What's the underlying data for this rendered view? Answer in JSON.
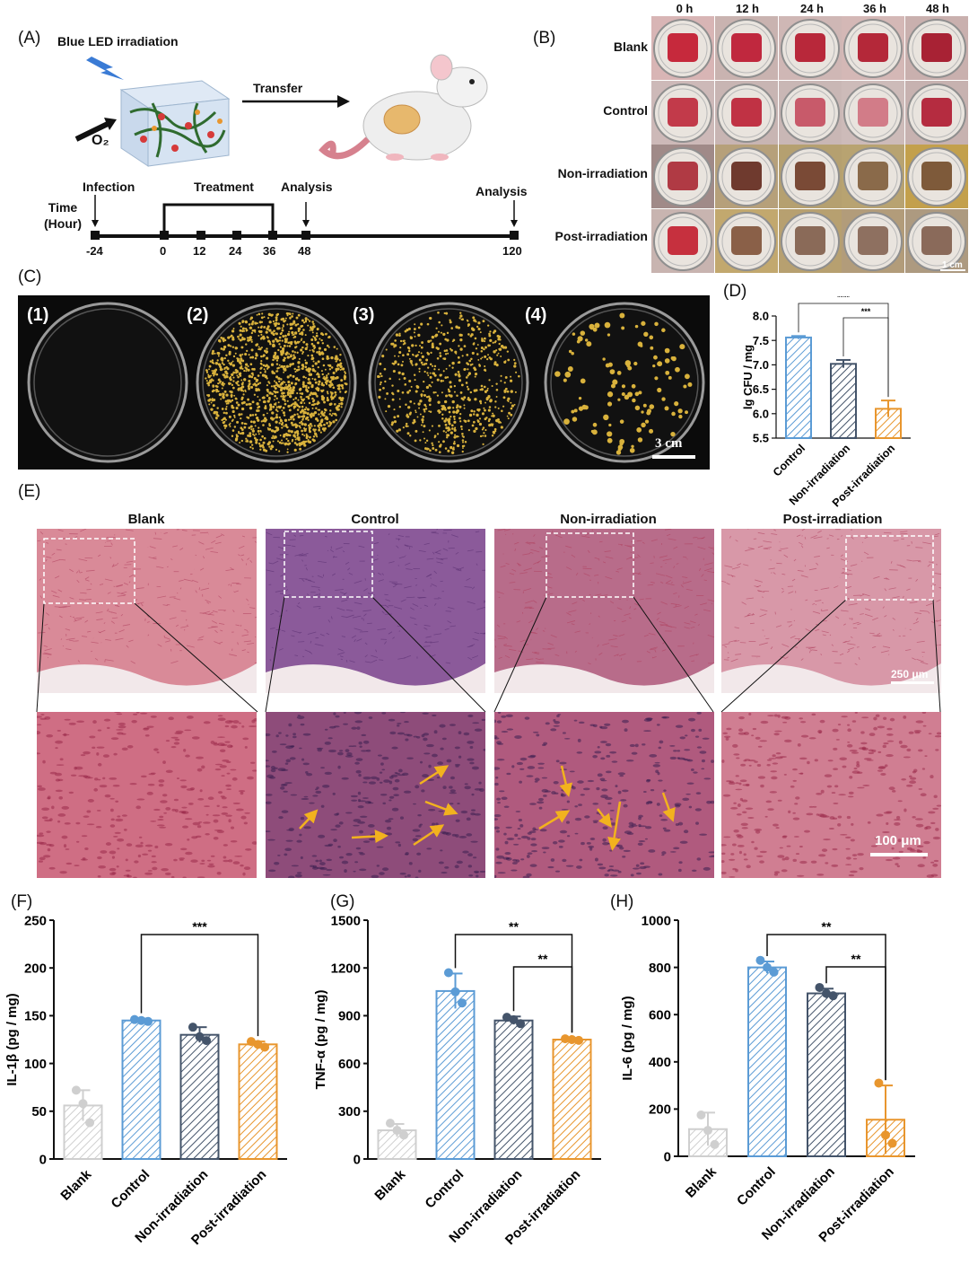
{
  "colors": {
    "blank": "#cfcfcf",
    "control": "#5b9bd5",
    "non_irradiation": "#44546a",
    "post_irradiation": "#e8962e",
    "plate_bg": "#0b0b0b",
    "colony": "#d9b23c",
    "he_pink": "#c94a6b",
    "he_purple": "#6b3a86",
    "arrow": "#f2b21e"
  },
  "panelA": {
    "label": "(A)",
    "led_text": "Blue LED irradiation",
    "o2_text": "O₂",
    "transfer_text": "Transfer",
    "timeline": {
      "infection": "Infection",
      "treatment": "Treatment",
      "analysis1": "Analysis",
      "analysis2": "Analysis",
      "time_label_1": "Time",
      "time_label_2": "(Hour)",
      "ticks": [
        "-24",
        "0",
        "12",
        "24",
        "36",
        "48",
        "120"
      ]
    }
  },
  "panelB": {
    "label": "(B)",
    "times": [
      "0 h",
      "12 h",
      "24 h",
      "36 h",
      "48 h"
    ],
    "rows": [
      "Blank",
      "Control",
      "Non-irradiation",
      "Post-irradiation"
    ],
    "scale": "1 cm"
  },
  "panelC": {
    "label": "(C)",
    "plates": [
      "(1)",
      "(2)",
      "(3)",
      "(4)"
    ],
    "colony_density": [
      0,
      0.95,
      0.45,
      0.08
    ],
    "scale": "3 cm"
  },
  "panelE": {
    "label": "(E)",
    "groups": [
      "Blank",
      "Control",
      "Non-irradiation",
      "Post-irradiation"
    ],
    "scale_top": "250 μm",
    "scale_bottom": "100 μm"
  },
  "chart_data": [
    {
      "panel": "(D)",
      "type": "bar",
      "categories": [
        "Control",
        "Non-irradiation",
        "Post-irradiation"
      ],
      "values": [
        7.56,
        7.02,
        6.1
      ],
      "errors": [
        0.03,
        0.08,
        0.17
      ],
      "ylabel": "lg CFU / mg",
      "ylim": [
        5.5,
        8.0
      ],
      "yticks": [
        "5.5",
        "6.0",
        "6.5",
        "7.0",
        "7.5",
        "8.0"
      ],
      "significance": [
        {
          "from": "Control",
          "to": "Post-irradiation",
          "label": "****"
        },
        {
          "from": "Non-irradiation",
          "to": "Post-irradiation",
          "label": "***"
        }
      ]
    },
    {
      "panel": "(F)",
      "type": "bar",
      "categories": [
        "Blank",
        "Control",
        "Non-irradiation",
        "Post-irradiation"
      ],
      "values": [
        56,
        145,
        130,
        120
      ],
      "errors": [
        16,
        2,
        8,
        3
      ],
      "points": [
        [
          72,
          58,
          38
        ],
        [
          146,
          145,
          144
        ],
        [
          138,
          128,
          124
        ],
        [
          123,
          120,
          117
        ]
      ],
      "ylabel": "IL-1β (pg / mg)",
      "ylim": [
        0,
        250
      ],
      "yticks": [
        "0",
        "50",
        "100",
        "150",
        "200",
        "250"
      ],
      "significance": [
        {
          "from": "Control",
          "to": "Post-irradiation",
          "label": "***"
        }
      ]
    },
    {
      "panel": "(G)",
      "type": "bar",
      "categories": [
        "Blank",
        "Control",
        "Non-irradiation",
        "Post-irradiation"
      ],
      "values": [
        180,
        1055,
        870,
        750
      ],
      "errors": [
        40,
        110,
        25,
        10
      ],
      "points": [
        [
          225,
          180,
          150
        ],
        [
          1170,
          1050,
          980
        ],
        [
          890,
          875,
          850
        ],
        [
          755,
          750,
          745
        ]
      ],
      "ylabel": "TNF-α (pg / mg)",
      "ylim": [
        0,
        1500
      ],
      "yticks": [
        "0",
        "300",
        "600",
        "900",
        "1200",
        "1500"
      ],
      "significance": [
        {
          "from": "Control",
          "to": "Post-irradiation",
          "label": "**"
        },
        {
          "from": "Non-irradiation",
          "to": "Post-irradiation",
          "label": "**"
        }
      ]
    },
    {
      "panel": "(H)",
      "type": "bar",
      "categories": [
        "Blank",
        "Control",
        "Non-irradiation",
        "Post-irradiation"
      ],
      "values": [
        115,
        800,
        690,
        155
      ],
      "errors": [
        70,
        25,
        20,
        145
      ],
      "points": [
        [
          175,
          110,
          50
        ],
        [
          830,
          800,
          780
        ],
        [
          715,
          690,
          680
        ],
        [
          310,
          90,
          55
        ]
      ],
      "ylabel": "IL-6 (pg / mg)",
      "ylim": [
        0,
        1000
      ],
      "yticks": [
        "0",
        "200",
        "400",
        "600",
        "800",
        "1000"
      ],
      "significance": [
        {
          "from": "Control",
          "to": "Post-irradiation",
          "label": "**"
        },
        {
          "from": "Non-irradiation",
          "to": "Post-irradiation",
          "label": "**"
        }
      ]
    }
  ]
}
